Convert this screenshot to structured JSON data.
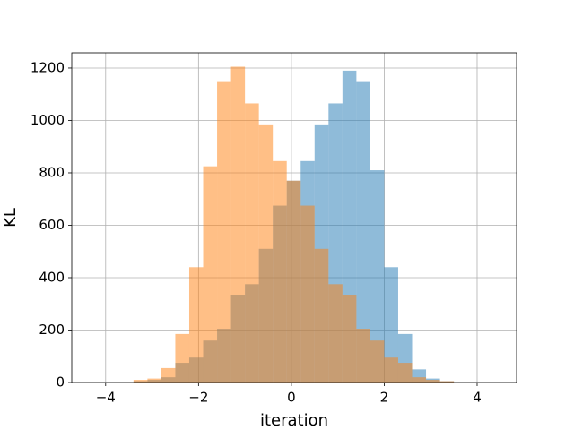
{
  "chart_data": {
    "type": "histogram",
    "x_label": "iteration",
    "y_label": "KL",
    "bins": [
      -3.4,
      -3.1,
      -2.8,
      -2.5,
      -2.2,
      -1.9,
      -1.6,
      -1.3,
      -1.0,
      -0.7,
      -0.4,
      -0.1,
      0.2,
      0.5,
      0.8,
      1.1,
      1.4,
      1.7,
      2.0,
      2.3,
      2.6,
      2.9,
      3.2,
      3.5
    ],
    "series": [
      {
        "color": "#1f77b4",
        "alpha": 0.5,
        "values": [
          5,
          10,
          20,
          75,
          95,
          160,
          205,
          335,
          375,
          510,
          675,
          770,
          845,
          985,
          1065,
          1190,
          1150,
          810,
          440,
          185,
          50,
          15,
          5
        ]
      },
      {
        "color": "#ff7f0e",
        "alpha": 0.5,
        "values": [
          10,
          15,
          55,
          185,
          440,
          825,
          1150,
          1205,
          1065,
          985,
          845,
          770,
          675,
          510,
          375,
          335,
          205,
          160,
          95,
          75,
          20,
          10,
          5
        ]
      }
    ],
    "xlim": [
      -4.73,
      4.85
    ],
    "ylim": [
      0,
      1258
    ],
    "xticks": [
      {
        "value": -4,
        "label": "−4"
      },
      {
        "value": -2,
        "label": "−2"
      },
      0,
      2,
      4
    ],
    "yticks": [
      0,
      200,
      400,
      600,
      800,
      1000,
      1200
    ],
    "grid": true
  }
}
